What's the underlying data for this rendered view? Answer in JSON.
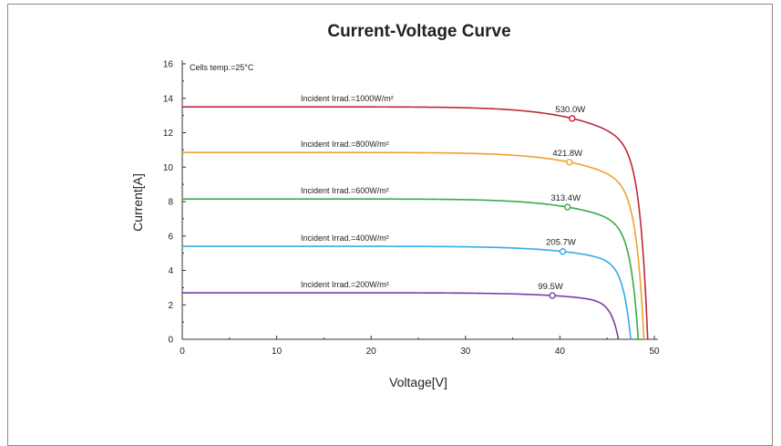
{
  "chart_data": {
    "type": "line",
    "title": "Current-Voltage Curve",
    "xlabel": "Voltage[V]",
    "ylabel": "Current[A]",
    "xlim": [
      0,
      50
    ],
    "ylim": [
      0,
      16
    ],
    "xticks": [
      "0",
      "10",
      "20",
      "30",
      "40",
      "50"
    ],
    "yticks": [
      "0",
      "2",
      "4",
      "6",
      "8",
      "10",
      "12",
      "14",
      "16"
    ],
    "grid": false,
    "annotation": "Cells temp.=25°C",
    "series": [
      {
        "name": "Incident Irrad.=1000W/m²",
        "color": "#c0283c",
        "isc": 13.5,
        "voc": 49.3,
        "mpp": [
          41.3,
          12.83
        ],
        "power_label": "530.0W"
      },
      {
        "name": "Incident Irrad.=800W/m²",
        "color": "#f0a030",
        "isc": 10.85,
        "voc": 48.9,
        "mpp": [
          41.0,
          10.29
        ],
        "power_label": "421.8W"
      },
      {
        "name": "Incident Irrad.=600W/m²",
        "color": "#3aaa4a",
        "isc": 8.15,
        "voc": 48.3,
        "mpp": [
          40.8,
          7.68
        ],
        "power_label": "313.4W"
      },
      {
        "name": "Incident Irrad.=400W/m²",
        "color": "#3aa8e8",
        "isc": 5.4,
        "voc": 47.5,
        "mpp": [
          40.3,
          5.1
        ],
        "power_label": "205.7W"
      },
      {
        "name": "Incident Irrad.=200W/m²",
        "color": "#7a3fa0",
        "isc": 2.7,
        "voc": 46.2,
        "mpp": [
          39.2,
          2.54
        ],
        "power_label": "99.5W"
      }
    ]
  }
}
